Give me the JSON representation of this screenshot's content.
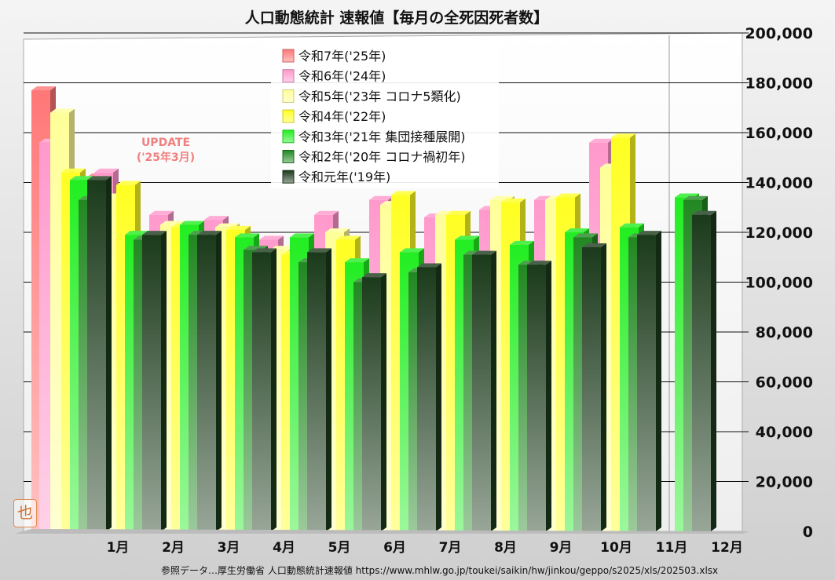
{
  "chart_data": {
    "type": "bar",
    "title": "人口動態統計 速報値【毎月の全死因死者数】",
    "categories": [
      "1月",
      "2月",
      "3月",
      "4月",
      "5月",
      "6月",
      "7月",
      "8月",
      "9月",
      "10月",
      "11月",
      "12月"
    ],
    "ylim": [
      0,
      200000
    ],
    "yticks": [
      "0",
      "20,000",
      "40,000",
      "60,000",
      "80,000",
      "100,000",
      "120,000",
      "140,000",
      "160,000",
      "180,000",
      "200,000"
    ],
    "grid": true,
    "legend_position": "top-center",
    "series": [
      {
        "name": "令和7年('25年)",
        "color": "#ff7777",
        "values": [
          177000,
          142000,
          null,
          null,
          null,
          null,
          null,
          null,
          null,
          null,
          null,
          null
        ]
      },
      {
        "name": "令和6年('24年)",
        "color": "#ff99cc",
        "values": [
          156000,
          144000,
          127000,
          125000,
          117000,
          127000,
          133000,
          126000,
          129000,
          133000,
          156000,
          null
        ]
      },
      {
        "name": "令和5年('23年 コロナ5類化)",
        "color": "#ffff99",
        "values": [
          168000,
          134000,
          123000,
          122000,
          113000,
          120000,
          131000,
          127000,
          133000,
          133000,
          146000,
          null
        ]
      },
      {
        "name": "令和4年('22年)",
        "color": "#ffff22",
        "values": [
          144000,
          139000,
          122000,
          121000,
          111000,
          117000,
          135000,
          127000,
          132000,
          134000,
          158000,
          null
        ]
      },
      {
        "name": "令和3年('21年 集団接種展開)",
        "color": "#22ee22",
        "values": [
          141000,
          119000,
          123000,
          118000,
          118000,
          108000,
          112000,
          117000,
          115000,
          120000,
          122000,
          134000
        ]
      },
      {
        "name": "令和2年('20年 コロナ禍初年)",
        "color": "#228822",
        "values": [
          133000,
          117000,
          119000,
          113000,
          108000,
          100000,
          104000,
          111000,
          107000,
          118000,
          118000,
          133000
        ]
      },
      {
        "name": "令和元年('19年)",
        "color": "#1b3a1b",
        "values": [
          141000,
          119000,
          119000,
          112000,
          112000,
          102000,
          106000,
          111000,
          107000,
          114000,
          119000,
          127000
        ]
      }
    ],
    "annotation": [
      "UPDATE",
      "('25年3月)"
    ]
  },
  "source_note": "参照データ…厚生労働省 人口動態統計速報値  https://www.mhlw.go.jp/toukei/saikin/hw/jinkou/geppo/s2025/xls/202503.xlsx",
  "logo_text": "也"
}
